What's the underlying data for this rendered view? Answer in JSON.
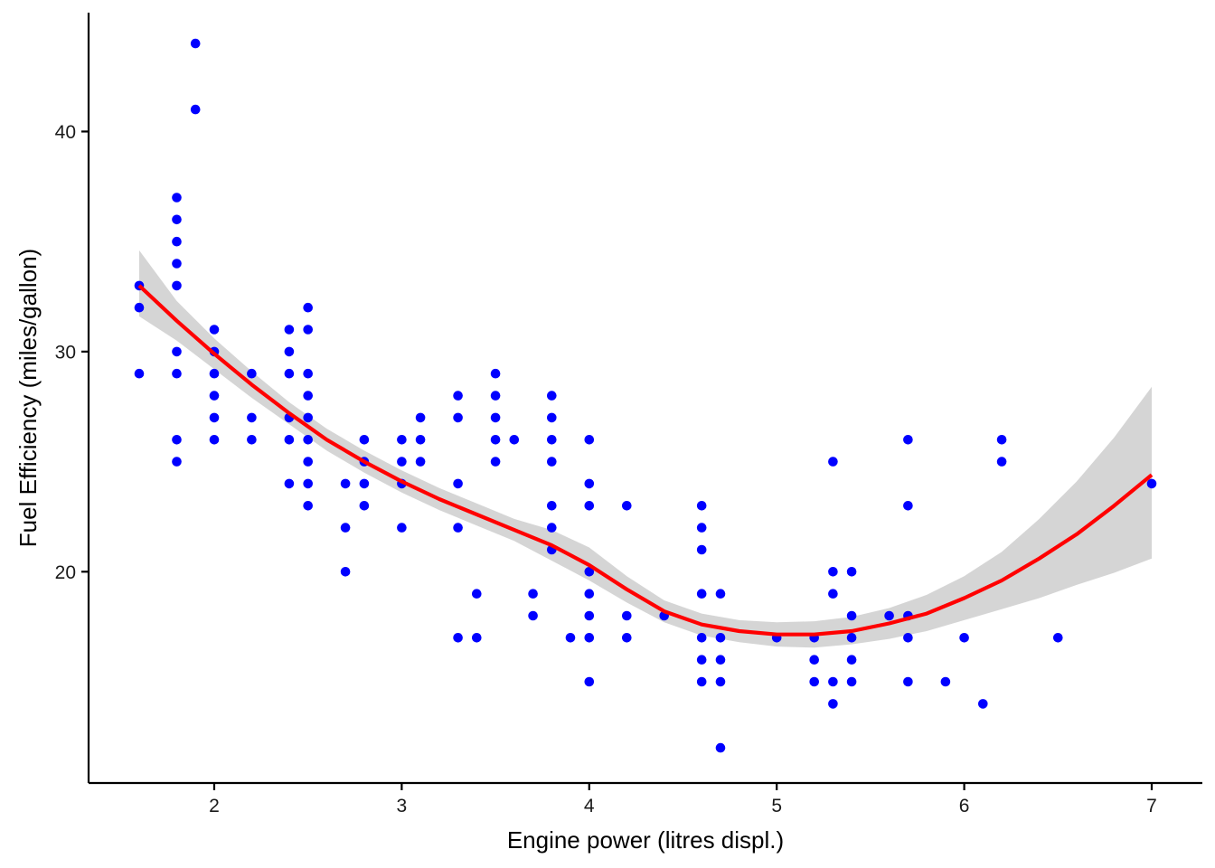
{
  "chart_data": {
    "type": "scatter",
    "title": "",
    "xlabel": "Engine power (litres displ.)",
    "ylabel": "Fuel Efficiency (miles/gallon)",
    "xlim": [
      1.33,
      7.27
    ],
    "ylim": [
      10.4,
      45.4
    ],
    "x_ticks": [
      2,
      3,
      4,
      5,
      6,
      7
    ],
    "y_ticks": [
      20,
      30,
      40
    ],
    "grid": false,
    "legend": "none",
    "colors": {
      "points": "#0000ff",
      "smooth_line": "#ff0000",
      "confidence_band": "#d0d0d0",
      "axis": "#000000"
    },
    "points": [
      [
        1.6,
        33
      ],
      [
        1.6,
        32
      ],
      [
        1.6,
        29
      ],
      [
        1.8,
        37
      ],
      [
        1.8,
        36
      ],
      [
        1.8,
        35
      ],
      [
        1.8,
        34
      ],
      [
        1.8,
        33
      ],
      [
        1.8,
        30
      ],
      [
        1.8,
        29
      ],
      [
        1.8,
        26
      ],
      [
        1.8,
        25
      ],
      [
        1.9,
        44
      ],
      [
        1.9,
        41
      ],
      [
        2.0,
        31
      ],
      [
        2.0,
        30
      ],
      [
        2.0,
        29
      ],
      [
        2.0,
        28
      ],
      [
        2.0,
        27
      ],
      [
        2.0,
        26
      ],
      [
        2.2,
        29
      ],
      [
        2.2,
        27
      ],
      [
        2.2,
        26
      ],
      [
        2.4,
        31
      ],
      [
        2.4,
        30
      ],
      [
        2.4,
        29
      ],
      [
        2.4,
        27
      ],
      [
        2.4,
        26
      ],
      [
        2.4,
        24
      ],
      [
        2.5,
        32
      ],
      [
        2.5,
        31
      ],
      [
        2.5,
        29
      ],
      [
        2.5,
        28
      ],
      [
        2.5,
        27
      ],
      [
        2.5,
        26
      ],
      [
        2.5,
        25
      ],
      [
        2.5,
        24
      ],
      [
        2.5,
        23
      ],
      [
        2.7,
        24
      ],
      [
        2.7,
        22
      ],
      [
        2.7,
        20
      ],
      [
        2.8,
        26
      ],
      [
        2.8,
        25
      ],
      [
        2.8,
        24
      ],
      [
        2.8,
        23
      ],
      [
        3.0,
        26
      ],
      [
        3.0,
        25
      ],
      [
        3.0,
        24
      ],
      [
        3.0,
        22
      ],
      [
        3.1,
        27
      ],
      [
        3.1,
        26
      ],
      [
        3.1,
        25
      ],
      [
        3.3,
        28
      ],
      [
        3.3,
        27
      ],
      [
        3.3,
        24
      ],
      [
        3.3,
        22
      ],
      [
        3.3,
        17
      ],
      [
        3.4,
        19
      ],
      [
        3.4,
        17
      ],
      [
        3.5,
        29
      ],
      [
        3.5,
        28
      ],
      [
        3.5,
        27
      ],
      [
        3.5,
        26
      ],
      [
        3.5,
        25
      ],
      [
        3.6,
        26
      ],
      [
        3.7,
        19
      ],
      [
        3.7,
        18
      ],
      [
        3.8,
        28
      ],
      [
        3.8,
        27
      ],
      [
        3.8,
        26
      ],
      [
        3.8,
        25
      ],
      [
        3.8,
        23
      ],
      [
        3.8,
        22
      ],
      [
        3.8,
        21
      ],
      [
        3.9,
        17
      ],
      [
        4.0,
        26
      ],
      [
        4.0,
        24
      ],
      [
        4.0,
        23
      ],
      [
        4.0,
        20
      ],
      [
        4.0,
        19
      ],
      [
        4.0,
        18
      ],
      [
        4.0,
        17
      ],
      [
        4.0,
        15
      ],
      [
        4.2,
        23
      ],
      [
        4.2,
        18
      ],
      [
        4.2,
        17
      ],
      [
        4.4,
        18
      ],
      [
        4.6,
        23
      ],
      [
        4.6,
        22
      ],
      [
        4.6,
        21
      ],
      [
        4.6,
        19
      ],
      [
        4.6,
        17
      ],
      [
        4.6,
        16
      ],
      [
        4.6,
        15
      ],
      [
        4.7,
        19
      ],
      [
        4.7,
        17
      ],
      [
        4.7,
        16
      ],
      [
        4.7,
        15
      ],
      [
        4.7,
        12
      ],
      [
        5.0,
        17
      ],
      [
        5.2,
        17
      ],
      [
        5.2,
        16
      ],
      [
        5.2,
        15
      ],
      [
        5.3,
        25
      ],
      [
        5.3,
        20
      ],
      [
        5.3,
        19
      ],
      [
        5.3,
        15
      ],
      [
        5.3,
        14
      ],
      [
        5.4,
        20
      ],
      [
        5.4,
        18
      ],
      [
        5.4,
        17
      ],
      [
        5.4,
        16
      ],
      [
        5.4,
        15
      ],
      [
        5.6,
        18
      ],
      [
        5.7,
        26
      ],
      [
        5.7,
        23
      ],
      [
        5.7,
        18
      ],
      [
        5.7,
        17
      ],
      [
        5.7,
        15
      ],
      [
        5.9,
        15
      ],
      [
        6.0,
        17
      ],
      [
        6.1,
        14
      ],
      [
        6.2,
        26
      ],
      [
        6.2,
        25
      ],
      [
        6.5,
        17
      ],
      [
        7.0,
        24
      ]
    ],
    "smooth": {
      "x": [
        1.6,
        1.8,
        2.0,
        2.2,
        2.4,
        2.6,
        2.8,
        3.0,
        3.2,
        3.4,
        3.6,
        3.8,
        4.0,
        4.2,
        4.4,
        4.6,
        4.8,
        5.0,
        5.2,
        5.4,
        5.6,
        5.8,
        6.0,
        6.2,
        6.4,
        6.6,
        6.8,
        7.0
      ],
      "y": [
        33.0,
        31.4,
        29.9,
        28.5,
        27.2,
        26.0,
        25.0,
        24.1,
        23.3,
        22.6,
        21.9,
        21.2,
        20.3,
        19.2,
        18.2,
        17.6,
        17.3,
        17.15,
        17.15,
        17.3,
        17.65,
        18.1,
        18.8,
        19.6,
        20.6,
        21.7,
        23.0,
        24.4
      ],
      "lower": [
        31.6,
        30.5,
        29.2,
        27.9,
        26.7,
        25.5,
        24.5,
        23.6,
        22.8,
        22.1,
        21.4,
        20.5,
        19.6,
        18.6,
        17.7,
        17.1,
        16.8,
        16.6,
        16.55,
        16.7,
        16.95,
        17.3,
        17.8,
        18.3,
        18.8,
        19.4,
        19.95,
        20.6
      ],
      "upper": [
        34.6,
        32.3,
        30.6,
        29.1,
        27.7,
        26.5,
        25.5,
        24.6,
        23.8,
        23.1,
        22.4,
        21.9,
        21.1,
        19.8,
        18.7,
        18.1,
        17.8,
        17.7,
        17.75,
        17.95,
        18.35,
        18.95,
        19.8,
        20.9,
        22.4,
        24.1,
        26.1,
        28.4
      ]
    }
  }
}
